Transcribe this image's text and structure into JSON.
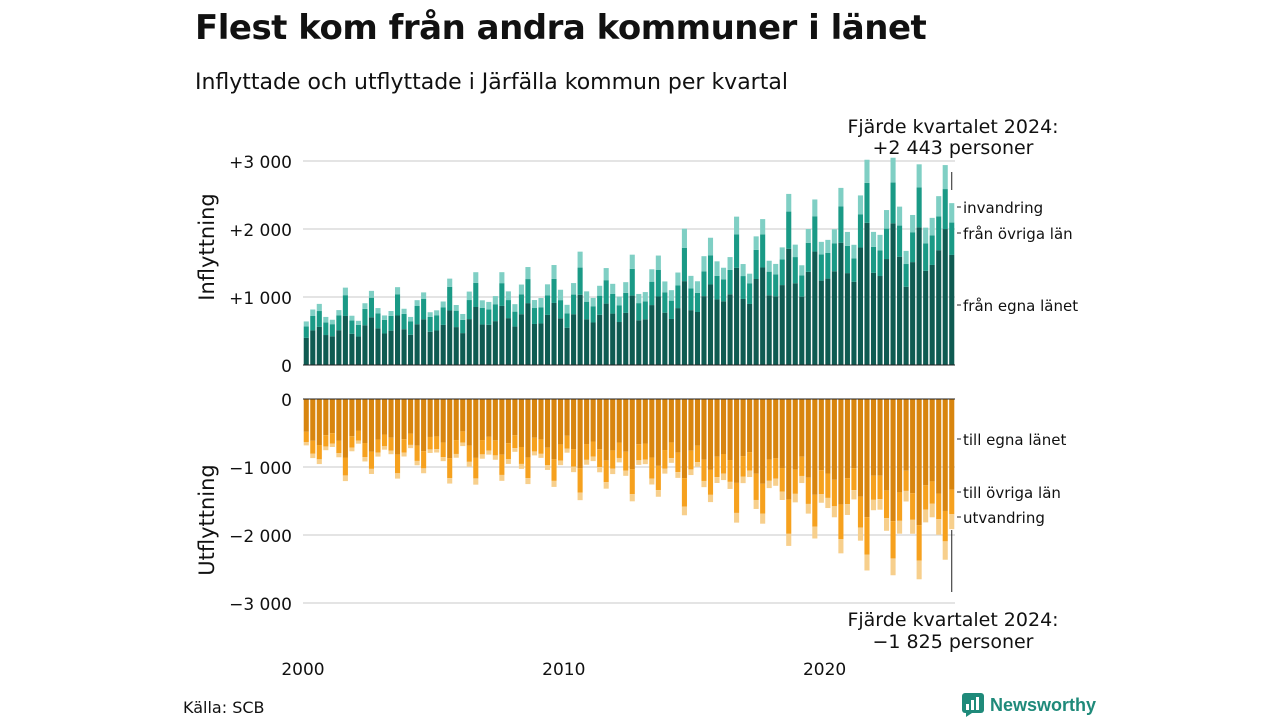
{
  "title": "Flest kom från andra kommuner i länet",
  "subtitle": "Inflyttade och utflyttade i Järfälla kommun per kvartal",
  "source": "Källa: SCB",
  "brand": "Newsworthy",
  "colors": {
    "in_egna": "#0f5b52",
    "in_ovriga": "#1a9a86",
    "in_invandring": "#7fcfc4",
    "out_egna": "#d8850f",
    "out_ovriga": "#f6a11e",
    "out_utvandring": "#f7cf8c",
    "grid": "#dcdcdc",
    "brand": "#1f8a7a"
  },
  "chart_data": {
    "type": "bar",
    "stacked": true,
    "x_start": "2000 Q1",
    "x_end": "2024 Q4",
    "x_ticks": [
      2000,
      2010,
      2020
    ],
    "grid": true,
    "panels": {
      "inflyttning": {
        "ylabel": "Inflyttning",
        "ylim": [
          0,
          3000
        ],
        "yticks": [
          0,
          1000,
          2000,
          3000
        ],
        "ytick_labels": [
          "0",
          "+1 000",
          "+2 000",
          "+3 000"
        ],
        "series": [
          {
            "name": "från egna länet",
            "yearly_totals": [
              480,
              520,
              560,
              560,
              560,
              600,
              650,
              700,
              720,
              720,
              750,
              760,
              780,
              820,
              880,
              1000,
              1100,
              1150,
              1250,
              1350,
              1450,
              1600,
              1600,
              1550,
              1700
            ]
          },
          {
            "name": "från övriga län",
            "yearly_totals": [
              200,
              220,
              230,
              240,
              250,
              260,
              270,
              270,
              280,
              280,
              290,
              290,
              300,
              320,
              350,
              360,
              380,
              390,
              400,
              420,
              430,
              450,
              460,
              450,
              500
            ]
          },
          {
            "name": "invandring",
            "yearly_totals": [
              90,
              80,
              80,
              80,
              80,
              90,
              120,
              130,
              140,
              160,
              170,
              150,
              160,
              170,
              200,
              220,
              200,
              180,
              190,
              200,
              220,
              260,
              280,
              260,
              300
            ]
          }
        ],
        "annotation": {
          "line1": "Fjärde kvartalet 2024:",
          "line2": "+2 443 personer"
        }
      },
      "utflyttning": {
        "ylabel": "Utflyttning",
        "ylim": [
          -3000,
          0
        ],
        "yticks": [
          0,
          -1000,
          -2000,
          -3000
        ],
        "ytick_labels": [
          "0",
          "−1 000",
          "−2 000",
          "−3 000"
        ],
        "series": [
          {
            "name": "till egna länet",
            "yearly_totals": [
              -580,
              -620,
              -620,
              -630,
              -640,
              -650,
              -660,
              -660,
              -680,
              -700,
              -740,
              -760,
              -790,
              -800,
              -830,
              -880,
              -950,
              -1000,
              -1080,
              -1140,
              -1250,
              -1330,
              -1380,
              -1420,
              -1400
            ]
          },
          {
            "name": "till övriga län",
            "yearly_totals": [
              -180,
              -190,
              -200,
              -210,
              -210,
              -220,
              -230,
              -240,
              -240,
              -250,
              -260,
              -270,
              -280,
              -290,
              -300,
              -310,
              -340,
              -350,
              -370,
              -380,
              -410,
              -420,
              -420,
              -400,
              -380
            ]
          },
          {
            "name": "utvandring",
            "yearly_totals": [
              -60,
              -60,
              -60,
              -60,
              -60,
              -60,
              -70,
              -70,
              -70,
              -70,
              -80,
              -80,
              -80,
              -80,
              -90,
              -90,
              -110,
              -120,
              -130,
              -140,
              -170,
              -180,
              -190,
              -210,
              -230
            ]
          }
        ],
        "annotation": {
          "line1": "Fjärde kvartalet 2024:",
          "line2": "−1 825 personer"
        }
      }
    }
  }
}
